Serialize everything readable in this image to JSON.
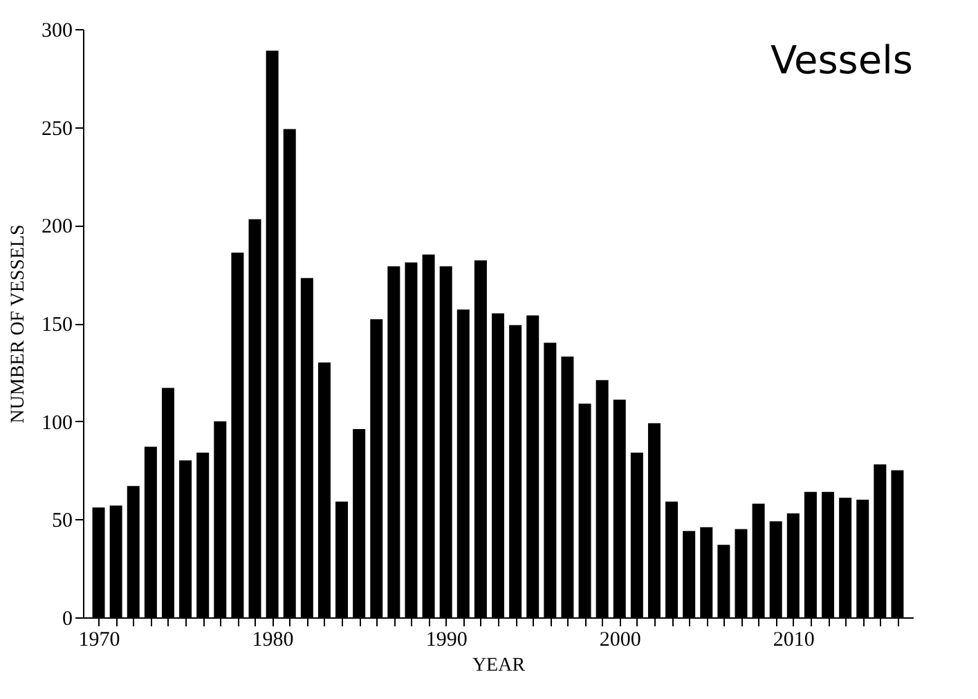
{
  "chart_data": {
    "type": "bar",
    "title": "Vessels",
    "xlabel": "YEAR",
    "ylabel": "NUMBER OF VESSELS",
    "color": "#000000",
    "x": [
      1970,
      1971,
      1972,
      1973,
      1974,
      1975,
      1976,
      1977,
      1978,
      1979,
      1980,
      1981,
      1982,
      1983,
      1984,
      1985,
      1986,
      1987,
      1988,
      1989,
      1990,
      1991,
      1992,
      1993,
      1994,
      1995,
      1996,
      1997,
      1998,
      1999,
      2000,
      2001,
      2002,
      2003,
      2004,
      2005,
      2006,
      2007,
      2008,
      2009,
      2010,
      2011,
      2012,
      2013,
      2014,
      2015,
      2016
    ],
    "values": [
      56,
      57,
      67,
      87,
      117,
      80,
      84,
      100,
      186,
      203,
      289,
      249,
      173,
      130,
      59,
      96,
      152,
      179,
      181,
      185,
      179,
      157,
      182,
      155,
      149,
      154,
      140,
      133,
      109,
      121,
      111,
      84,
      99,
      59,
      44,
      46,
      37,
      45,
      58,
      49,
      53,
      64,
      64,
      61,
      60,
      78,
      75
    ],
    "xlim": [
      1969.5,
      2016.5
    ],
    "xticks": [
      1970,
      {
        "value": 1971,
        "label": null
      },
      {
        "value": 1972,
        "label": null
      },
      {
        "value": 1973,
        "label": null
      },
      {
        "value": 1974,
        "label": null
      },
      {
        "value": 1975,
        "label": null
      },
      {
        "value": 1976,
        "label": null
      },
      {
        "value": 1977,
        "label": null
      },
      {
        "value": 1978,
        "label": null
      },
      {
        "value": 1979,
        "label": null
      },
      1980,
      {
        "value": 1981,
        "label": null
      },
      {
        "value": 1982,
        "label": null
      },
      {
        "value": 1983,
        "label": null
      },
      {
        "value": 1984,
        "label": null
      },
      {
        "value": 1985,
        "label": null
      },
      {
        "value": 1986,
        "label": null
      },
      {
        "value": 1987,
        "label": null
      },
      {
        "value": 1988,
        "label": null
      },
      {
        "value": 1989,
        "label": null
      },
      1990,
      {
        "value": 1991,
        "label": null
      },
      {
        "value": 1992,
        "label": null
      },
      {
        "value": 1993,
        "label": null
      },
      {
        "value": 1994,
        "label": null
      },
      {
        "value": 1995,
        "label": null
      },
      {
        "value": 1996,
        "label": null
      },
      {
        "value": 1997,
        "label": null
      },
      {
        "value": 1998,
        "label": null
      },
      {
        "value": 1999,
        "label": null
      },
      2000,
      {
        "value": 2001,
        "label": null
      },
      {
        "value": 2002,
        "label": null
      },
      {
        "value": 2003,
        "label": null
      },
      {
        "value": 2004,
        "label": null
      },
      {
        "value": 2005,
        "label": null
      },
      {
        "value": 2006,
        "label": null
      },
      {
        "value": 2007,
        "label": null
      },
      {
        "value": 2008,
        "label": null
      },
      {
        "value": 2009,
        "label": null
      },
      2010,
      {
        "value": 2011,
        "label": null
      },
      {
        "value": 2012,
        "label": null
      },
      {
        "value": 2013,
        "label": null
      },
      {
        "value": 2014,
        "label": null
      },
      {
        "value": 2015,
        "label": null
      },
      {
        "value": 2016,
        "label": null
      }
    ],
    "ylim": [
      0,
      300
    ],
    "yticks": [
      0,
      50,
      100,
      150,
      200,
      250,
      300
    ],
    "grid": false
  }
}
